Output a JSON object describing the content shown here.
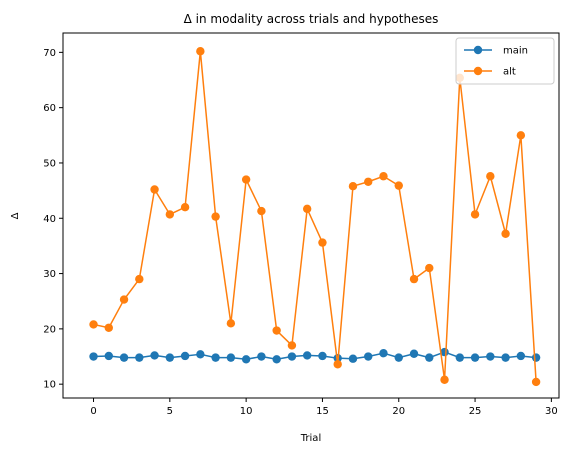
{
  "chart_data": {
    "type": "line",
    "title": "Δ in modality across trials and hypotheses",
    "xlabel": "Trial",
    "ylabel": "Δ",
    "xlim": [
      -2,
      30.5
    ],
    "ylim": [
      7.5,
      73.5
    ],
    "xticks": [
      0,
      5,
      10,
      15,
      20,
      25,
      30
    ],
    "yticks": [
      10,
      20,
      30,
      40,
      50,
      60,
      70
    ],
    "grid": false,
    "legend_position": "top-right",
    "x": [
      0,
      1,
      2,
      3,
      4,
      5,
      6,
      7,
      8,
      9,
      10,
      11,
      12,
      13,
      14,
      15,
      16,
      17,
      18,
      19,
      20,
      21,
      22,
      23,
      24,
      25,
      26,
      27,
      28,
      29
    ],
    "series": [
      {
        "name": "main",
        "color": "#1f77b4",
        "values": [
          15.0,
          15.1,
          14.8,
          14.8,
          15.2,
          14.8,
          15.1,
          15.4,
          14.8,
          14.8,
          14.5,
          15.0,
          14.5,
          15.0,
          15.2,
          15.1,
          14.7,
          14.6,
          15.0,
          15.6,
          14.8,
          15.5,
          14.8,
          15.8,
          14.8,
          14.8,
          15.0,
          14.8,
          15.1,
          14.8
        ]
      },
      {
        "name": "alt",
        "color": "#ff7f0e",
        "values": [
          20.8,
          20.2,
          25.3,
          29.0,
          45.2,
          40.7,
          42.0,
          70.2,
          40.3,
          21.0,
          47.0,
          41.3,
          19.7,
          17.0,
          41.7,
          35.6,
          13.6,
          45.8,
          46.6,
          47.6,
          45.9,
          29.0,
          31.0,
          10.8,
          65.4,
          40.7,
          47.6,
          37.2,
          55.0,
          10.4
        ]
      }
    ]
  }
}
